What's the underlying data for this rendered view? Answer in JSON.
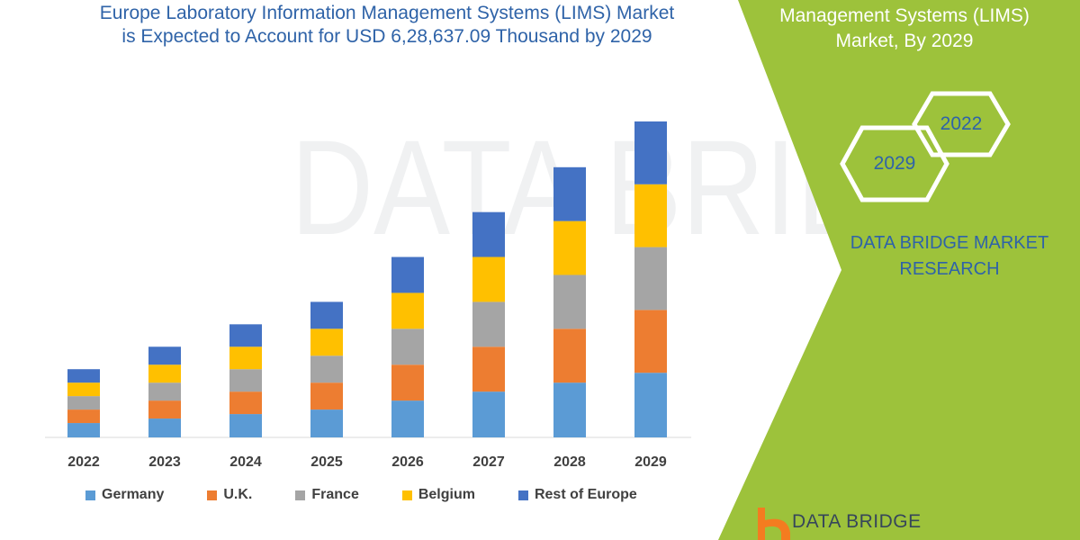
{
  "title_line1": "Europe Laboratory Information Management Systems (LIMS) Market",
  "title_line2": "is Expected to Account for USD 6,28,637.09 Thousand by 2029",
  "side_panel": {
    "title_line1": "Management Systems (LIMS)",
    "title_line2": "Market, By 2029",
    "hex_year_a": "2022",
    "hex_year_b": "2029",
    "brand_line1": "DATA BRIDGE MARKET",
    "brand_line2": "RESEARCH",
    "logo_text": "DATA BRIDGE",
    "background_color": "#9dc23b"
  },
  "chart_data": {
    "type": "bar",
    "stacked": true,
    "categories": [
      "2022",
      "2023",
      "2024",
      "2025",
      "2026",
      "2027",
      "2028",
      "2029"
    ],
    "ylim": [
      0,
      375
    ],
    "grid": false,
    "legend_position": "bottom",
    "series": [
      {
        "name": "Germany",
        "color": "#5b9bd5",
        "values": [
          16,
          21,
          26,
          31,
          41,
          51,
          61,
          72
        ]
      },
      {
        "name": "U.K.",
        "color": "#ed7d31",
        "values": [
          15,
          20,
          25,
          30,
          40,
          50,
          60,
          70
        ]
      },
      {
        "name": "France",
        "color": "#a5a5a5",
        "values": [
          15,
          20,
          25,
          30,
          40,
          50,
          60,
          70
        ]
      },
      {
        "name": "Belgium",
        "color": "#ffc000",
        "values": [
          15,
          20,
          25,
          30,
          40,
          50,
          60,
          70
        ]
      },
      {
        "name": "Rest of Europe",
        "color": "#4472c4",
        "values": [
          15,
          20,
          25,
          30,
          40,
          50,
          60,
          70
        ]
      }
    ]
  }
}
